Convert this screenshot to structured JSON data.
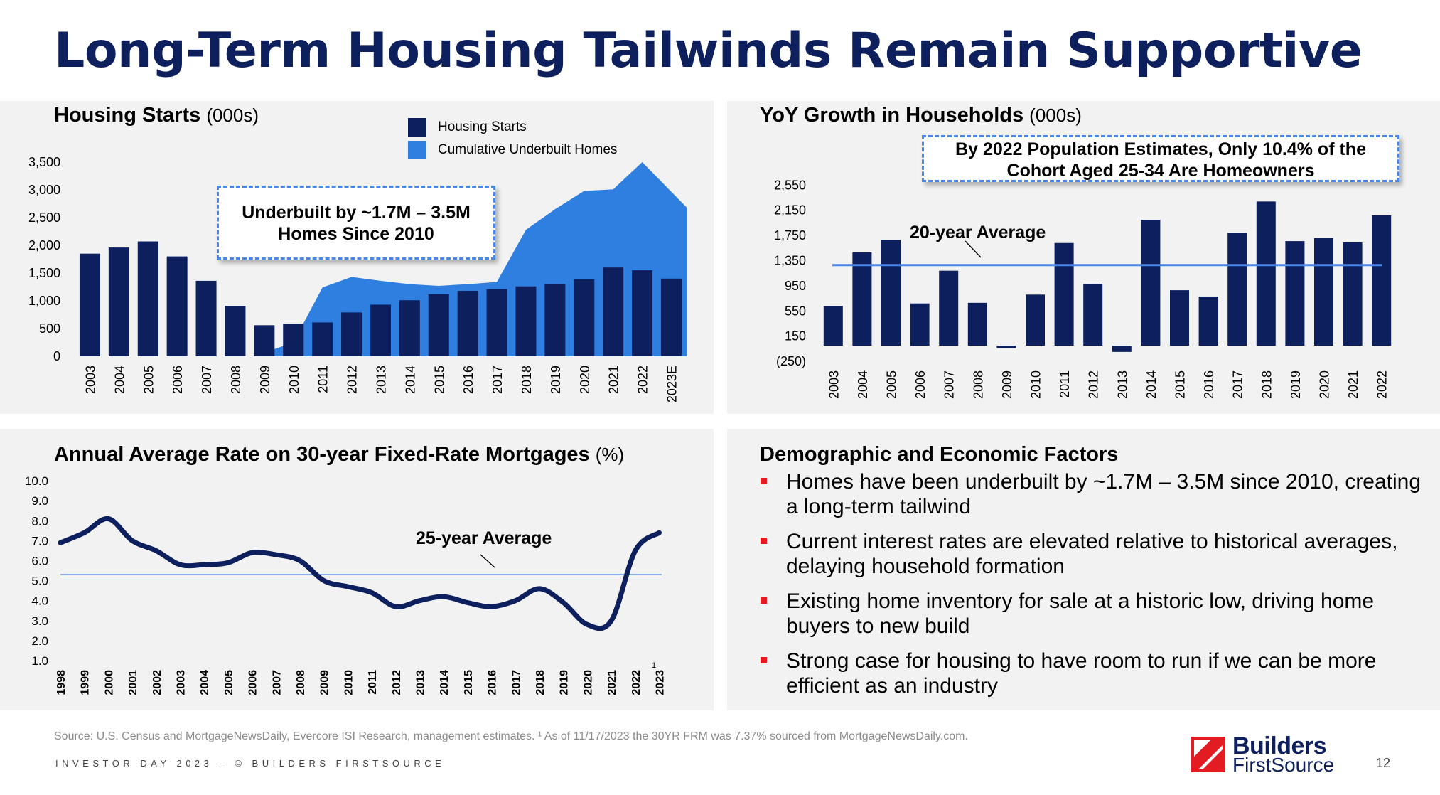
{
  "title": "Long-Term Housing Tailwinds Remain Supportive",
  "colors": {
    "navy": "#0d1f5c",
    "bright_blue": "#2f7fe0",
    "line_blue": "#4a86e8",
    "bullet_red": "#e31b23"
  },
  "housing_starts": {
    "title": "Housing Starts",
    "unit": "(000s)",
    "callout": [
      "Underbuilt by ~1.7M – 3.5M",
      "Homes Since 2010"
    ]
  },
  "households": {
    "title": "YoY Growth in Households",
    "unit": "(000s)",
    "callout": [
      "By 2022 Population Estimates, Only 10.4% of the",
      "Cohort Aged 25-34 Are Homeowners"
    ],
    "avg_label": "20-year Average"
  },
  "mortgage": {
    "title": "Annual Average Rate on 30-year Fixed-Rate Mortgages",
    "unit": "(%)",
    "avg_label": "25-year Average",
    "footnote_mark": "1"
  },
  "factors": {
    "title": "Demographic and Economic Factors",
    "bullets": [
      "Homes have been underbuilt by ~1.7M – 3.5M since 2010, creating a long-term tailwind",
      "Current interest rates are elevated relative to historical averages, delaying household formation",
      "Existing home inventory for sale at a historic low, driving home buyers to new build",
      "Strong case for housing to have room to run if we can be more efficient as an industry"
    ]
  },
  "source_note": "Source: U.S. Census and MortgageNewsDaily, Evercore ISI Research, management estimates. ¹ As of 11/17/2023 the 30YR FRM was 7.37% sourced from MortgageNewsDaily.com.",
  "footer": "INVESTOR DAY 2023 – © BUILDERS FIRSTSOURCE",
  "logo": {
    "line1": "Builders",
    "line2": "FirstSource"
  },
  "page_number": "12",
  "chart_data": [
    {
      "type": "bar",
      "title": "Housing Starts (000s)",
      "categories": [
        "2003",
        "2004",
        "2005",
        "2006",
        "2007",
        "2008",
        "2009",
        "2010",
        "2011",
        "2012",
        "2013",
        "2014",
        "2015",
        "2016",
        "2017",
        "2018",
        "2019",
        "2020",
        "2021",
        "2022",
        "2023E"
      ],
      "series": [
        {
          "name": "Housing Starts",
          "values": [
            1850,
            1960,
            2070,
            1800,
            1360,
            910,
            560,
            590,
            610,
            790,
            930,
            1010,
            1120,
            1180,
            1210,
            1260,
            1300,
            1390,
            1600,
            1550,
            1400
          ]
        },
        {
          "name": "Cumulative Underbuilt Homes",
          "values": [
            null,
            null,
            null,
            null,
            null,
            null,
            0,
            250,
            1240,
            1430,
            1360,
            1300,
            1270,
            1300,
            1340,
            2280,
            2650,
            2980,
            3010,
            3500,
            2680
          ]
        }
      ],
      "yticks": [
        0,
        500,
        1000,
        1500,
        2000,
        2500,
        3000,
        3500
      ],
      "ytick_labels": [
        "0",
        "500",
        "1,000",
        "1,500",
        "2,000",
        "2,500",
        "3,000",
        "3,500"
      ],
      "ylim": [
        0,
        3500
      ]
    },
    {
      "type": "bar",
      "title": "YoY Growth in Households (000s)",
      "categories": [
        "2003",
        "2004",
        "2005",
        "2006",
        "2007",
        "2008",
        "2009",
        "2010",
        "2011",
        "2012",
        "2013",
        "2014",
        "2015",
        "2016",
        "2017",
        "2018",
        "2019",
        "2020",
        "2021",
        "2022"
      ],
      "values": [
        630,
        1480,
        1680,
        670,
        1190,
        680,
        -40,
        810,
        1630,
        980,
        -100,
        2000,
        880,
        780,
        1790,
        2290,
        1660,
        1710,
        1640,
        2070
      ],
      "average": 1280,
      "yticks": [
        -250,
        150,
        550,
        950,
        1350,
        1750,
        2150,
        2550
      ],
      "ytick_labels": [
        "(250)",
        "150",
        "550",
        "950",
        "1,350",
        "1,750",
        "2,150",
        "2,550"
      ],
      "ylim": [
        -250,
        2550
      ]
    },
    {
      "type": "line",
      "title": "Annual Average Rate on 30-year Fixed-Rate Mortgages (%)",
      "x": [
        "1998",
        "1999",
        "2000",
        "2001",
        "2002",
        "2003",
        "2004",
        "2005",
        "2006",
        "2007",
        "2008",
        "2009",
        "2010",
        "2011",
        "2012",
        "2013",
        "2014",
        "2015",
        "2016",
        "2017",
        "2018",
        "2019",
        "2020",
        "2021",
        "2022",
        "2023"
      ],
      "values": [
        6.9,
        7.4,
        8.1,
        7.0,
        6.5,
        5.8,
        5.8,
        5.9,
        6.4,
        6.3,
        6.0,
        5.0,
        4.7,
        4.4,
        3.7,
        4.0,
        4.2,
        3.9,
        3.7,
        4.0,
        4.6,
        3.9,
        2.8,
        3.0,
        6.5,
        7.4
      ],
      "average": 5.3,
      "yticks": [
        1,
        2,
        3,
        4,
        5,
        6,
        7,
        8,
        9,
        10
      ],
      "ytick_labels": [
        "1.0",
        "2.0",
        "3.0",
        "4.0",
        "5.0",
        "6.0",
        "7.0",
        "8.0",
        "9.0",
        "10.0"
      ],
      "ylim": [
        1,
        10
      ]
    }
  ]
}
